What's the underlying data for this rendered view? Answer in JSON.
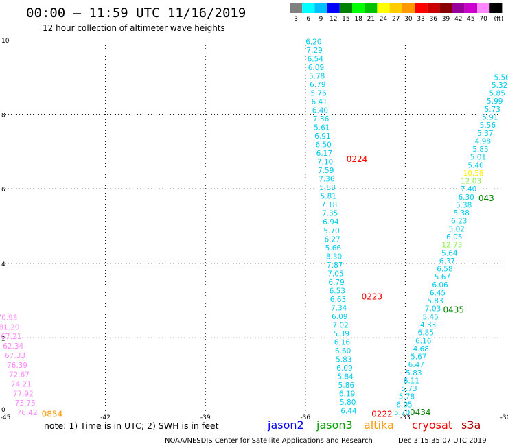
{
  "header": {
    "title": "00:00 – 11:59 UTC 11/16/2019",
    "subtitle": "12 hour collection of altimeter wave heights"
  },
  "scale": {
    "colors": [
      "#808080",
      "#00ffff",
      "#00c0ff",
      "#0000ff",
      "#008000",
      "#00ff00",
      "#00c000",
      "#ffff00",
      "#ffcc00",
      "#ff9900",
      "#ff0000",
      "#cc0000",
      "#880000",
      "#990099",
      "#cc00cc",
      "#ff88ff",
      "#000000"
    ],
    "labels": [
      "3",
      "6",
      "9",
      "12",
      "15",
      "18",
      "21",
      "24",
      "27",
      "30",
      "33",
      "36",
      "39",
      "42",
      "45",
      "70",
      "(ft)"
    ]
  },
  "legend": {
    "items": [
      {
        "name": "jason2",
        "color": "#0000ff"
      },
      {
        "name": "jason3",
        "color": "#00a000"
      },
      {
        "name": "altika",
        "color": "#ff9900"
      },
      {
        "name": "cryosat",
        "color": "#ff0000"
      },
      {
        "name": "s3a",
        "color": "#aa0000"
      }
    ]
  },
  "note": "note:  1) Time is in UTC;  2) SWH is in feet",
  "footer": {
    "left": "NOAA/NESDIS Center for Satellite Applications and Research",
    "right": "Dec  3 15:35:07 UTC 2019"
  },
  "chart_data": {
    "type": "scatter",
    "xlim": [
      -45,
      -30
    ],
    "ylim": [
      0,
      10
    ],
    "x_ticks": [
      "-45",
      "-42",
      "-39",
      "-36",
      "-33",
      "-30"
    ],
    "y_ticks": [
      "0",
      "2",
      "4",
      "6",
      "8",
      "10"
    ],
    "grid": true,
    "tracks": [
      {
        "name": "track-a",
        "x_start": -35.75,
        "y_start": 9.95,
        "x_end": -34.7,
        "y_end": 0.05,
        "values": [
          "6.20",
          "7.29",
          "6.54",
          "6.09",
          "5.78",
          "6.79",
          "5.76",
          "6.41",
          "6.40",
          "7.36",
          "5.61",
          "6.91",
          "6.50",
          "6.17",
          "7.10",
          "7.59",
          "7.36",
          "5.88",
          "5.81",
          "7.18",
          "7.35",
          "6.94",
          "5.70",
          "6.27",
          "5.66",
          "8.30",
          "7.87",
          "7.05",
          "6.79",
          "6.53",
          "6.63",
          "7.34",
          "6.09",
          "7.02",
          "5.39",
          "6.16",
          "6.60",
          "5.83",
          "6.09",
          "5.84",
          "5.86",
          "6.19",
          "5.80",
          "6.44"
        ],
        "colors": [
          "#00ccee",
          "#00ccee",
          "#00ccee",
          "#00ccee",
          "#00ccee",
          "#00ccee",
          "#00ccee",
          "#00ccee",
          "#00ccee",
          "#00ccee",
          "#00ccee",
          "#00ccee",
          "#00ccee",
          "#00ccee",
          "#00ccee",
          "#00ccee",
          "#00ccee",
          "#00ccee",
          "#00ccee",
          "#00ccee",
          "#00ccee",
          "#00ccee",
          "#00ccee",
          "#00ccee",
          "#00ccee",
          "#00ccee",
          "#00ccee",
          "#00ccee",
          "#00ccee",
          "#00ccee",
          "#00ccee",
          "#00ccee",
          "#00ccee",
          "#00ccee",
          "#00ccee",
          "#00ccee",
          "#00ccee",
          "#00ccee",
          "#00ccee",
          "#00ccee",
          "#00ccee",
          "#00ccee",
          "#00ccee",
          "#00ccee"
        ]
      },
      {
        "name": "track-b",
        "x_start": -30.1,
        "y_start": 9.0,
        "x_end": -33.1,
        "y_end": 0.0,
        "values": [
          "5.50",
          "5.32",
          "5.85",
          "5.99",
          "5.73",
          "5.91",
          "5.56",
          "5.37",
          "4.98",
          "5.85",
          "5.01",
          "5.40",
          "10.58",
          "12.03",
          "7.40",
          "6.30",
          "5.38",
          "5.38",
          "6.23",
          "5.02",
          "6.05",
          "12.73",
          "5.64",
          "6.37",
          "6.58",
          "5.67",
          "6.06",
          "6.45",
          "5.83",
          "7.03",
          "5.45",
          "4.33",
          "6.85",
          "6.16",
          "4.68",
          "5.67",
          "6.47",
          "5.83",
          "6.11",
          "5.73",
          "5.78",
          "6.05",
          "5.70"
        ],
        "colors": [
          "#00ccee",
          "#00ccee",
          "#00ccee",
          "#00ccee",
          "#00ccee",
          "#00ccee",
          "#00ccee",
          "#00ccee",
          "#00ccee",
          "#00ccee",
          "#00ccee",
          "#00ccee",
          "#ffee00",
          "#88ee44",
          "#00ccee",
          "#00ccee",
          "#00ccee",
          "#00ccee",
          "#00ccee",
          "#00ccee",
          "#00ccee",
          "#88ee44",
          "#00ccee",
          "#00ccee",
          "#00ccee",
          "#00ccee",
          "#00ccee",
          "#00ccee",
          "#00ccee",
          "#00ccee",
          "#00ccee",
          "#00ccee",
          "#00ccee",
          "#00ccee",
          "#00ccee",
          "#00ccee",
          "#00ccee",
          "#00ccee",
          "#00ccee",
          "#00ccee",
          "#00ccee",
          "#00ccee",
          "#00ccee"
        ]
      },
      {
        "name": "track-c",
        "x_start": -44.95,
        "y_start": 2.55,
        "x_end": -44.35,
        "y_end": 0.0,
        "values": [
          "70.93",
          "81.20",
          "67.21",
          "62.34",
          "67.33",
          "76.39",
          "72.67",
          "74.21",
          "77.92",
          "73.75",
          "76.42"
        ],
        "colors": [
          "#ff88ff",
          "#ff88ff",
          "#ff88ff",
          "#ff88ff",
          "#ff88ff",
          "#ff88ff",
          "#ff88ff",
          "#ff88ff",
          "#ff88ff",
          "#ff88ff",
          "#ff88ff"
        ]
      }
    ],
    "pass_times": [
      {
        "label": "0224",
        "x": -34.45,
        "y": 6.8,
        "color": "#ff0000"
      },
      {
        "label": "0223",
        "x": -34.0,
        "y": 3.1,
        "color": "#ff0000"
      },
      {
        "label": "0222",
        "x": -33.7,
        "y": -0.05,
        "color": "#ff0000"
      },
      {
        "label": "0434",
        "x": -32.55,
        "y": -0.0,
        "color": "#008000"
      },
      {
        "label": "0435",
        "x": -31.55,
        "y": 2.75,
        "color": "#008000"
      },
      {
        "label": "043",
        "x": -30.57,
        "y": 5.75,
        "color": "#008000"
      },
      {
        "label": "0854",
        "x": -43.6,
        "y": -0.05,
        "color": "#ff9900"
      }
    ]
  }
}
